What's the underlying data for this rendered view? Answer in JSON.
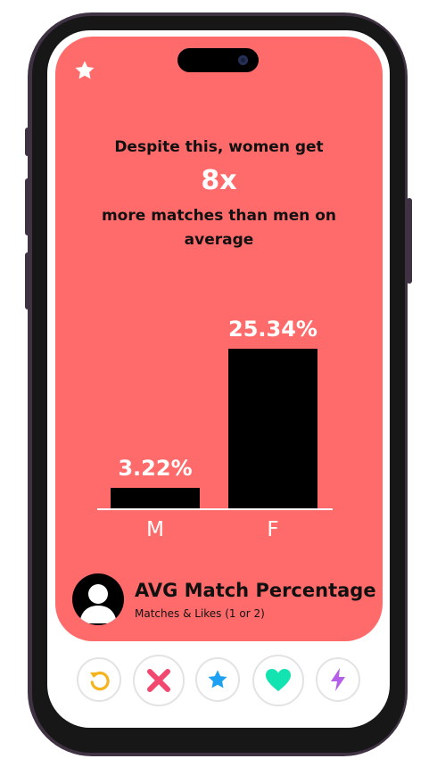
{
  "headline": {
    "line1": "Despite this, women get",
    "multiplier": "8x",
    "line2": "more matches than men on average"
  },
  "card": {
    "title": "AVG Match Percentage",
    "subtitle": "Matches & Likes (1 or 2)"
  },
  "colors": {
    "card_background": "#ff6b6b",
    "bar": "#000000",
    "label": "#ffffff",
    "rewind": "#f5b31f",
    "nope": "#f2476e",
    "super_like": "#1ea1f2",
    "like": "#13e3b0",
    "boost": "#b55ee8"
  },
  "actions": {
    "icons": [
      "rewind-icon",
      "nope-icon",
      "super-like-icon",
      "like-icon",
      "boost-icon"
    ]
  },
  "chart_data": {
    "type": "bar",
    "categories": [
      "M",
      "F"
    ],
    "values": [
      3.22,
      25.34
    ],
    "labels": [
      "3.22%",
      "25.34%"
    ],
    "ylim": [
      0,
      25.34
    ]
  }
}
